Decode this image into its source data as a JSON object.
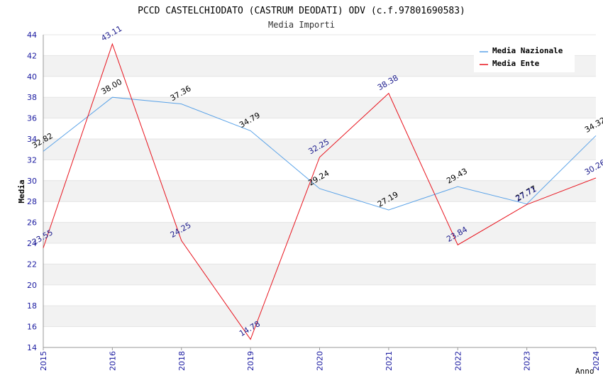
{
  "chart_data": {
    "type": "line",
    "title": "PCCD CASTELCHIODATO (CASTRUM DEODATI) ODV (c.f.97801690583)",
    "subtitle": "Media Importi",
    "xlabel": "Anno",
    "ylabel": "Media",
    "ylim": [
      14,
      44
    ],
    "yticks": [
      14,
      16,
      18,
      20,
      22,
      24,
      26,
      28,
      30,
      32,
      34,
      36,
      38,
      40,
      42,
      44
    ],
    "categories": [
      "2015",
      "2016",
      "2018",
      "2019",
      "2020",
      "2021",
      "2022",
      "2023",
      "2024"
    ],
    "grid": "horizontal alternating bands",
    "legend_position": "top-right",
    "series": [
      {
        "name": "Media Nazionale",
        "color": "#5ba3e8",
        "label_color": "#000000",
        "values": [
          32.82,
          38.0,
          37.36,
          34.79,
          29.24,
          27.19,
          29.43,
          27.77,
          34.32
        ],
        "labels": [
          "32.82",
          "38.00",
          "37.36",
          "34.79",
          "29.24",
          "27.19",
          "29.43",
          "27.77",
          "34.32"
        ]
      },
      {
        "name": "Media Ente",
        "color": "#e8141e",
        "label_color": "#1a1a8c",
        "values": [
          23.55,
          43.11,
          24.25,
          14.78,
          32.25,
          38.38,
          23.84,
          27.71,
          30.26
        ],
        "labels": [
          "23.55",
          "43.11",
          "24.25",
          "14.78",
          "32.25",
          "38.38",
          "23.84",
          "27.71",
          "30.26"
        ]
      }
    ]
  }
}
